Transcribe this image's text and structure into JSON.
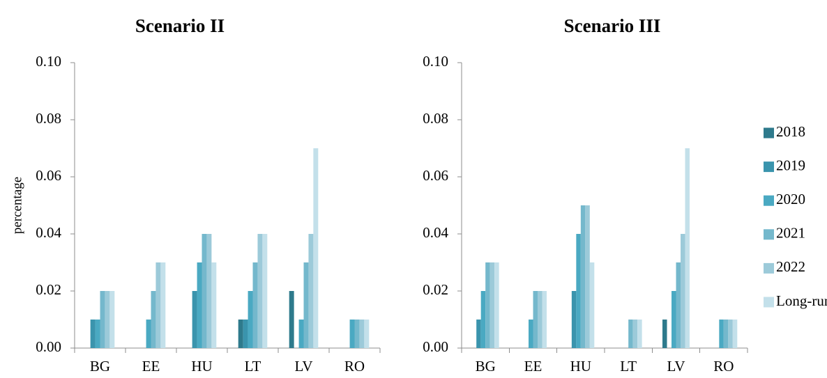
{
  "chart_data": [
    {
      "type": "bar",
      "title": "Scenario II",
      "xlabel": "",
      "ylabel": "percentage",
      "ylim": [
        0,
        0.1
      ],
      "yticks": [
        "0.00",
        "0.02",
        "0.04",
        "0.06",
        "0.08",
        "0.10"
      ],
      "categories": [
        "BG",
        "EE",
        "HU",
        "LT",
        "LV",
        "RO"
      ],
      "series": [
        {
          "name": "2018",
          "values": [
            0,
            0,
            0,
            0.01,
            0.02,
            0
          ]
        },
        {
          "name": "2019",
          "values": [
            0.01,
            0,
            0.02,
            0.01,
            0,
            0
          ]
        },
        {
          "name": "2020",
          "values": [
            0.01,
            0.01,
            0.03,
            0.02,
            0.01,
            0.01
          ]
        },
        {
          "name": "2021",
          "values": [
            0.02,
            0.02,
            0.04,
            0.03,
            0.03,
            0.01
          ]
        },
        {
          "name": "2022",
          "values": [
            0.02,
            0.03,
            0.04,
            0.04,
            0.04,
            0.01
          ]
        },
        {
          "name": "Long-run",
          "values": [
            0.02,
            0.03,
            0.03,
            0.04,
            0.07,
            0.01
          ]
        }
      ],
      "grid": false
    },
    {
      "type": "bar",
      "title": "Scenario III",
      "xlabel": "",
      "ylabel": "",
      "ylim": [
        0,
        0.1
      ],
      "yticks": [
        "0.00",
        "0.02",
        "0.04",
        "0.06",
        "0.08",
        "0.10"
      ],
      "categories": [
        "BG",
        "EE",
        "HU",
        "LT",
        "LV",
        "RO"
      ],
      "series": [
        {
          "name": "2018",
          "values": [
            0,
            0,
            0,
            0,
            0.01,
            0
          ]
        },
        {
          "name": "2019",
          "values": [
            0.01,
            0,
            0.02,
            0,
            0,
            0
          ]
        },
        {
          "name": "2020",
          "values": [
            0.02,
            0.01,
            0.04,
            0,
            0.02,
            0.01
          ]
        },
        {
          "name": "2021",
          "values": [
            0.03,
            0.02,
            0.05,
            0.01,
            0.03,
            0.01
          ]
        },
        {
          "name": "2022",
          "values": [
            0.03,
            0.02,
            0.05,
            0.01,
            0.04,
            0.01
          ]
        },
        {
          "name": "Long-run",
          "values": [
            0.03,
            0.02,
            0.03,
            0.01,
            0.07,
            0.01
          ]
        }
      ],
      "grid": false
    }
  ],
  "legend": {
    "placement": "right",
    "entries": [
      "2018",
      "2019",
      "2020",
      "2021",
      "2022",
      "Long-run"
    ]
  },
  "colors": {
    "series": [
      "#2e7a8c",
      "#3a94ad",
      "#4aa9c2",
      "#74b8cc",
      "#9ccad9",
      "#c3e0ea"
    ],
    "axis": "#8c8c8c",
    "text": "#000000"
  }
}
